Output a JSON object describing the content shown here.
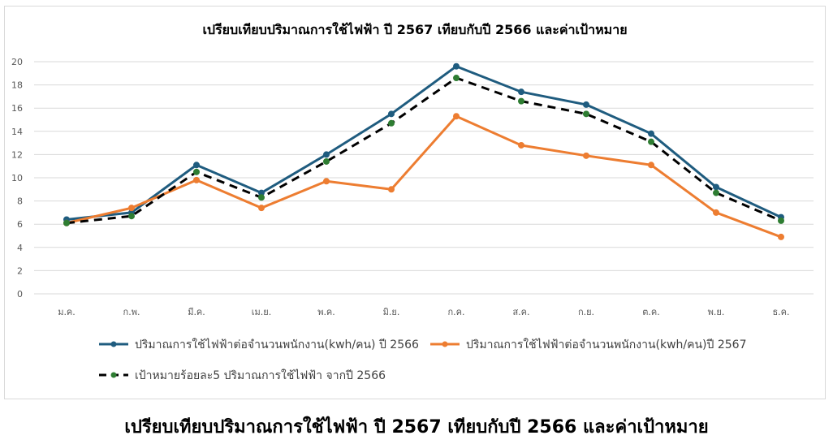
{
  "caption": "เปรียบเทียบปริมาณการใช้ไฟฟ้า ปี 2567 เทียบกับปี 2566 และค่าเป้าหมาย",
  "chart_data": {
    "type": "line",
    "title": "เปรียบเทียบปริมาณการใช้ไฟฟ้า ปี 2567 เทียบกับปี 2566 และค่าเป้าหมาย",
    "xlabel": "",
    "ylabel": "",
    "ylim": [
      0,
      20
    ],
    "yticks": [
      0,
      2,
      4,
      6,
      8,
      10,
      12,
      14,
      16,
      18,
      20
    ],
    "grid": true,
    "legend_position": "bottom",
    "categories": [
      "ม.ค.",
      "ก.พ.",
      "มี.ค.",
      "เม.ย.",
      "พ.ค.",
      "มิ.ย.",
      "ก.ค.",
      "ส.ค.",
      "ก.ย.",
      "ต.ค.",
      "พ.ย.",
      "ธ.ค."
    ],
    "series": [
      {
        "name": "ปริมาณการใช้ไฟฟ้าต่อจำนวนพนักงาน(kwh/คน) ปี 2566",
        "color": "#1f5c7f",
        "marker_color": "#1f5c7f",
        "dash": false,
        "values": [
          6.4,
          7.0,
          11.1,
          8.7,
          12.0,
          15.5,
          19.6,
          17.4,
          16.3,
          13.8,
          9.2,
          6.6
        ]
      },
      {
        "name": "ปริมาณการใช้ไฟฟ้าต่อจำนวนพนักงาน(kwh/คน)ปี 2567",
        "color": "#ed7d31",
        "marker_color": "#ed7d31",
        "dash": false,
        "values": [
          6.1,
          7.4,
          9.8,
          7.4,
          9.7,
          9.0,
          15.3,
          12.8,
          11.9,
          11.1,
          7.0,
          4.9
        ]
      },
      {
        "name": "เป้าหมายร้อยละ5 ปริมาณการใช้ไฟฟ้า จากปี 2566",
        "color": "#000000",
        "marker_color": "#2e7d32",
        "dash": true,
        "values": [
          6.1,
          6.7,
          10.5,
          8.3,
          11.4,
          14.7,
          18.6,
          16.6,
          15.5,
          13.1,
          8.7,
          6.3
        ]
      }
    ]
  }
}
